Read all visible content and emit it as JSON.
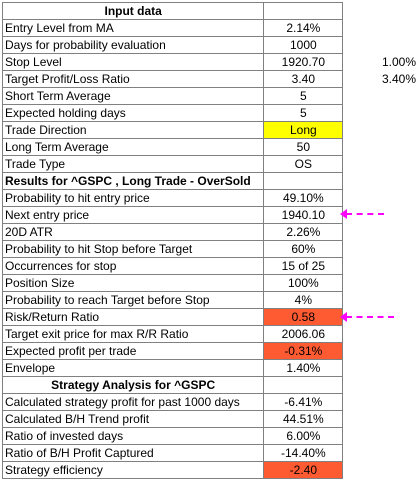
{
  "input_header": "Input data",
  "results_header": "Results for ^GSPC , Long Trade - OverSold",
  "strategy_header": "Strategy Analysis for ^GSPC",
  "input_rows": [
    {
      "label": "Entry Level from MA",
      "value": "2.14%",
      "extra": ""
    },
    {
      "label": "Days for probability evaluation",
      "value": "1000",
      "extra": ""
    },
    {
      "label": "Stop Level",
      "value": "1920.70",
      "extra": "1.00%"
    },
    {
      "label": "Target Profit/Loss Ratio",
      "value": "3.40",
      "extra": "3.40%"
    },
    {
      "label": "Short Term Average",
      "value": "5",
      "extra": ""
    },
    {
      "label": "Expected holding days",
      "value": "5",
      "extra": ""
    },
    {
      "label": "Trade Direction",
      "value": "Long",
      "extra": ""
    },
    {
      "label": "Long Term Average",
      "value": "50",
      "extra": ""
    },
    {
      "label": "Trade Type",
      "value": "OS",
      "extra": ""
    }
  ],
  "result_rows": [
    {
      "label": "Probability to hit entry price",
      "value": "49.10%"
    },
    {
      "label": "Next entry price",
      "value": "1940.10"
    },
    {
      "label": "20D ATR",
      "value": "2.26%"
    },
    {
      "label": "Probability to hit Stop before Target",
      "value": "60%"
    },
    {
      "label": "Occurrences for stop",
      "value": "15 of 25"
    },
    {
      "label": "Position Size",
      "value": "100%"
    },
    {
      "label": "Probability to reach Target before Stop",
      "value": "4%"
    },
    {
      "label": "Risk/Return Ratio",
      "value": "0.58"
    },
    {
      "label": "Target exit price for max R/R Ratio",
      "value": "2006.06"
    },
    {
      "label": "Expected profit per trade",
      "value": "-0.31%"
    },
    {
      "label": "Envelope",
      "value": "1.40%"
    }
  ],
  "strategy_rows": [
    {
      "label": "Calculated strategy profit for past 1000 days",
      "value": "-6.41%"
    },
    {
      "label": "Calculated B/H Trend profit",
      "value": "44.51%"
    },
    {
      "label": "Ratio of invested days",
      "value": "6.00%"
    },
    {
      "label": "Ratio of B/H Profit Captured",
      "value": "-14.40%"
    },
    {
      "label": "Strategy efficiency",
      "value": "-2.40"
    }
  ],
  "colors": {
    "highlight_yellow": "#ffff00",
    "highlight_red": "#ff5b33",
    "arrow_magenta": "#ff00ff"
  }
}
